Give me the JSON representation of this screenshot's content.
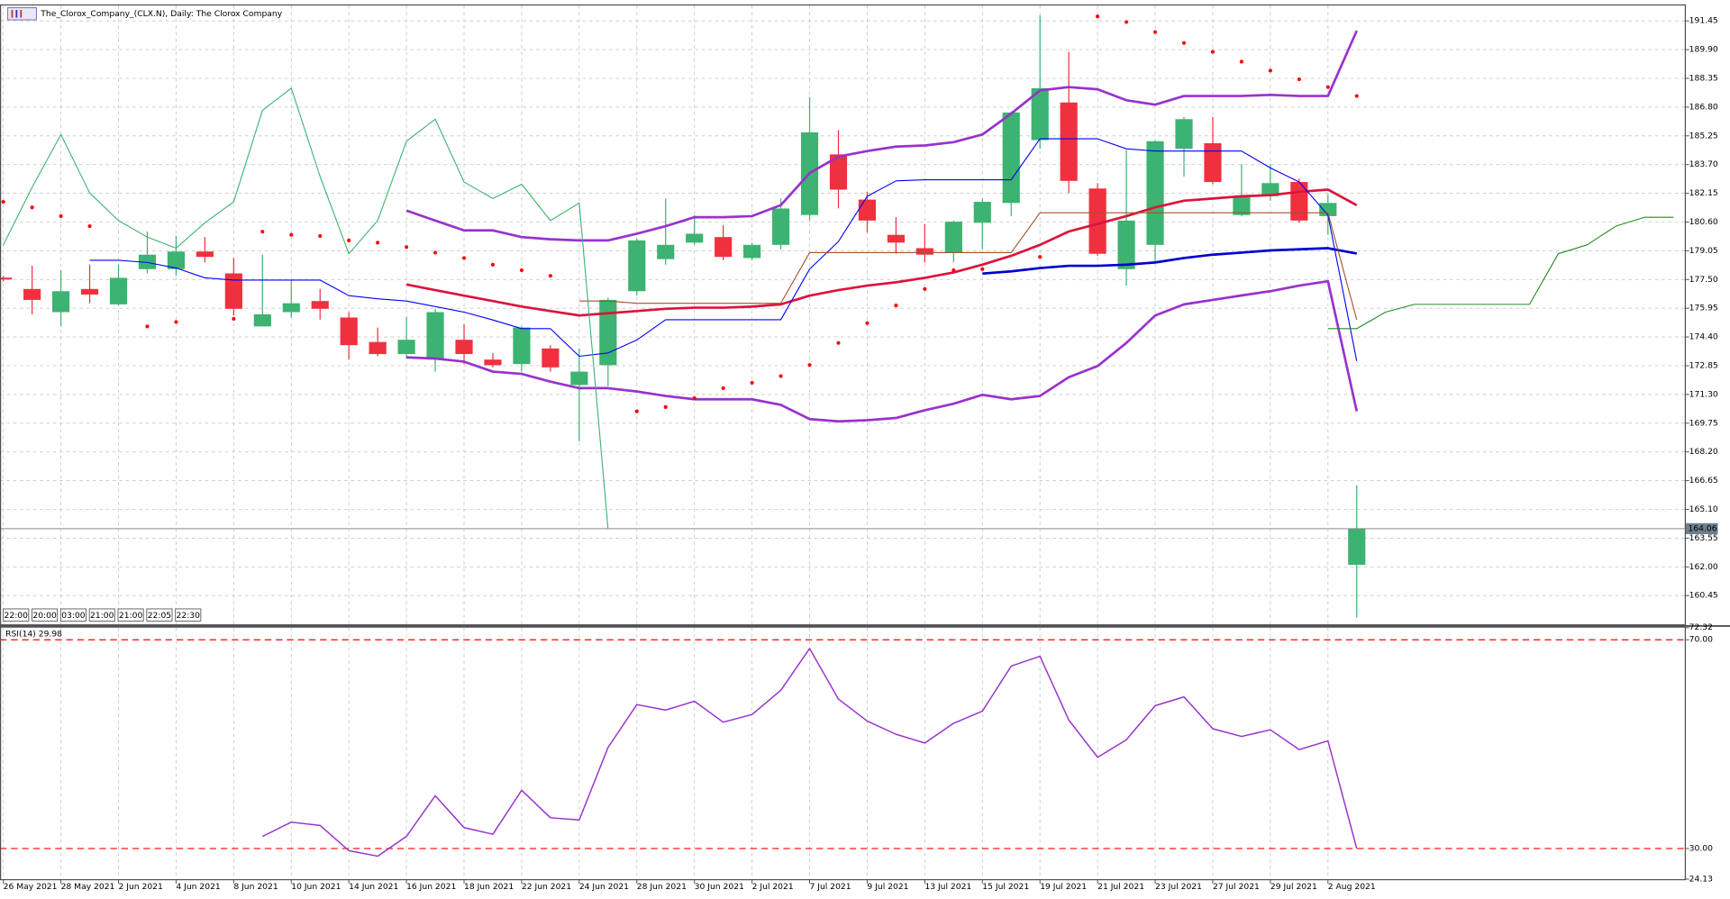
{
  "chart_data": [
    {
      "type": "candlestick",
      "title": "The_Clorox_Company_(CLX.N), Daily:  The Clorox Company",
      "categories": [
        "26 May 2021",
        null,
        "28 May 2021",
        null,
        "2 Jun 2021",
        null,
        "4 Jun 2021",
        null,
        "8 Jun 2021",
        null,
        "10 Jun 2021",
        null,
        "14 Jun 2021",
        null,
        "16 Jun 2021",
        null,
        "18 Jun 2021",
        null,
        "22 Jun 2021",
        null,
        "24 Jun 2021",
        null,
        "28 Jun 2021",
        null,
        "30 Jun 2021",
        null,
        "2 Jul 2021",
        null,
        "7 Jul 2021",
        null,
        "9 Jul 2021",
        null,
        "13 Jul 2021",
        null,
        "15 Jul 2021",
        null,
        "19 Jul 2021",
        null,
        "21 Jul 2021",
        null,
        "23 Jul 2021",
        null,
        "27 Jul 2021",
        null,
        "29 Jul 2021",
        null,
        "2 Aug 2021",
        null,
        null,
        null,
        null,
        null,
        null,
        null,
        null,
        null,
        null,
        null,
        null
      ],
      "open": [
        177.6,
        176.99,
        175.74,
        176.99,
        176.16,
        178.06,
        178.06,
        179.01,
        177.83,
        174.97,
        175.74,
        176.34,
        175.45,
        174.13,
        173.48,
        173.18,
        174.25,
        173.18,
        172.94,
        173.78,
        171.81,
        172.88,
        176.87,
        178.6,
        179.49,
        179.79,
        178.66,
        179.37,
        180.98,
        184.25,
        181.81,
        179.91,
        179.19,
        178.95,
        180.56,
        181.63,
        185.02,
        187.05,
        182.41,
        178.06,
        179.37,
        184.55,
        184.85,
        180.98,
        181.99,
        182.76,
        180.92,
        162.11,
        null,
        null,
        null,
        null,
        null,
        null,
        null,
        null,
        null,
        null,
        null
      ],
      "high": [
        177.7,
        178.24,
        178.0,
        178.3,
        178.3,
        180.09,
        179.85,
        179.79,
        178.66,
        178.84,
        177.47,
        176.99,
        175.74,
        174.91,
        175.5,
        175.92,
        175.09,
        173.54,
        174.97,
        173.96,
        173.78,
        176.52,
        179.7,
        181.87,
        180.98,
        180.44,
        179.49,
        181.87,
        187.34,
        185.56,
        182.23,
        180.86,
        180.5,
        180.68,
        181.87,
        186.57,
        191.75,
        189.78,
        182.7,
        184.49,
        185.0,
        186.27,
        186.27,
        183.72,
        183.72,
        182.94,
        182.11,
        166.4,
        null,
        null,
        null,
        null,
        null,
        null,
        null,
        null,
        null,
        null,
        null
      ],
      "low": [
        177.4,
        175.62,
        174.97,
        176.22,
        176.1,
        177.83,
        177.71,
        178.42,
        175.56,
        174.97,
        175.45,
        175.34,
        173.18,
        173.36,
        173.24,
        172.53,
        172.94,
        172.76,
        172.53,
        172.53,
        168.78,
        171.75,
        176.64,
        178.3,
        179.37,
        178.54,
        178.54,
        179.13,
        180.68,
        181.33,
        180.03,
        178.89,
        178.42,
        178.42,
        179.13,
        180.92,
        184.55,
        182.17,
        178.78,
        177.17,
        178.42,
        183.06,
        182.64,
        180.92,
        181.75,
        180.56,
        179.91,
        159.26,
        null,
        null,
        null,
        null,
        null,
        null,
        null,
        null,
        null,
        null,
        null
      ],
      "close": [
        177.5,
        176.4,
        176.87,
        176.69,
        177.59,
        178.84,
        179.01,
        178.72,
        175.92,
        175.62,
        176.22,
        175.92,
        173.96,
        173.48,
        174.25,
        175.74,
        173.48,
        172.88,
        174.91,
        172.76,
        172.53,
        176.4,
        179.61,
        179.37,
        179.97,
        178.72,
        179.37,
        181.33,
        185.44,
        182.35,
        180.68,
        179.49,
        178.84,
        180.62,
        181.69,
        186.51,
        187.82,
        182.82,
        178.89,
        180.68,
        184.96,
        186.15,
        182.76,
        181.99,
        182.7,
        180.68,
        181.63,
        164.06,
        null,
        null,
        null,
        null,
        null,
        null,
        null,
        null,
        null,
        null,
        null
      ],
      "up_color": "#3cb371",
      "down_color": "#f0303f",
      "ylim": [
        158.9,
        192.28
      ],
      "yticks": [
        191.45,
        {
          "value": 189.9,
          "label": "189.90"
        },
        188.35,
        {
          "value": 186.8,
          "label": "186.80"
        },
        185.25,
        {
          "value": 183.7,
          "label": "183.70"
        },
        182.15,
        {
          "value": 180.6,
          "label": "180.60"
        },
        179.05,
        {
          "value": 177.5,
          "label": "177.50"
        },
        175.95,
        {
          "value": 174.4,
          "label": "174.40"
        },
        172.85,
        {
          "value": 171.3,
          "label": "171.30"
        },
        169.75,
        {
          "value": 168.2,
          "label": "168.20"
        },
        166.65,
        {
          "value": 165.1,
          "label": "165.10"
        },
        163.55,
        {
          "value": 162.0,
          "label": "162.00"
        },
        160.45
      ],
      "grid": true,
      "current_price": 164.06,
      "session_labels": [
        "22:00",
        "20:00",
        "03:00",
        "21:00",
        "21:00",
        "22:05",
        "22:30"
      ],
      "series": [
        {
          "style": "thick",
          "color": "#9932cc",
          "values": [
            null,
            null,
            null,
            null,
            null,
            null,
            null,
            null,
            null,
            null,
            null,
            null,
            null,
            null,
            181.22,
            180.68,
            180.15,
            180.15,
            179.79,
            179.67,
            179.61,
            179.61,
            179.97,
            180.38,
            180.86,
            180.86,
            180.92,
            181.51,
            183.24,
            184.13,
            184.43,
            184.67,
            184.73,
            184.91,
            185.32,
            186.45,
            187.7,
            187.88,
            187.76,
            187.17,
            186.93,
            187.4,
            187.4,
            187.4,
            187.46,
            187.4,
            187.4,
            190.92,
            null,
            null,
            null,
            null,
            null,
            null,
            null,
            null,
            null,
            null,
            null
          ]
        },
        {
          "style": "thick",
          "color": "#dc143c",
          "values": [
            null,
            null,
            null,
            null,
            null,
            null,
            null,
            null,
            null,
            null,
            null,
            null,
            null,
            null,
            177.23,
            176.93,
            176.63,
            176.34,
            176.04,
            175.8,
            175.56,
            175.68,
            175.8,
            175.92,
            175.98,
            175.98,
            176.04,
            176.16,
            176.63,
            176.93,
            177.17,
            177.35,
            177.59,
            177.88,
            178.3,
            178.78,
            179.37,
            180.09,
            180.5,
            180.92,
            181.39,
            181.75,
            181.87,
            181.99,
            182.05,
            182.23,
            182.35,
            181.51,
            null,
            null,
            null,
            null,
            null,
            null,
            null,
            null,
            null,
            null,
            null
          ]
        },
        {
          "style": "thick",
          "color": "#9932cc",
          "values": [
            null,
            null,
            null,
            null,
            null,
            null,
            null,
            null,
            null,
            null,
            null,
            null,
            null,
            null,
            173.3,
            173.24,
            173.07,
            172.53,
            172.41,
            171.99,
            171.64,
            171.64,
            171.46,
            171.22,
            171.04,
            171.04,
            171.04,
            170.74,
            169.97,
            169.85,
            169.91,
            170.03,
            170.45,
            170.8,
            171.28,
            171.04,
            171.22,
            172.23,
            172.83,
            174.08,
            175.56,
            176.16,
            176.4,
            176.64,
            176.87,
            177.17,
            177.41,
            170.39,
            null,
            null,
            null,
            null,
            null,
            null,
            null,
            null,
            null,
            null,
            null
          ]
        },
        {
          "style": "thick",
          "color": "#0000cd",
          "values": [
            null,
            null,
            null,
            null,
            null,
            null,
            null,
            null,
            null,
            null,
            null,
            null,
            null,
            null,
            null,
            null,
            null,
            null,
            null,
            null,
            null,
            null,
            null,
            null,
            null,
            null,
            null,
            null,
            null,
            null,
            null,
            null,
            null,
            null,
            177.82,
            177.94,
            178.12,
            178.24,
            178.24,
            178.3,
            178.42,
            178.66,
            178.84,
            178.95,
            179.07,
            179.13,
            179.19,
            178.9,
            null,
            null,
            null,
            null,
            null,
            null,
            null,
            null,
            null,
            null,
            null
          ]
        },
        {
          "style": "thin",
          "color": "#0000ff",
          "values": [
            null,
            null,
            null,
            178.54,
            178.54,
            178.42,
            178.12,
            177.59,
            177.47,
            177.47,
            177.47,
            177.47,
            176.63,
            176.46,
            176.34,
            176.04,
            175.74,
            175.32,
            174.85,
            174.85,
            173.36,
            173.54,
            174.24,
            175.33,
            175.33,
            175.33,
            175.33,
            175.33,
            178.06,
            179.55,
            181.99,
            182.82,
            182.88,
            182.88,
            182.88,
            182.88,
            185.09,
            185.09,
            185.09,
            184.55,
            184.43,
            184.43,
            184.43,
            184.43,
            183.52,
            182.76,
            180.98,
            173.1,
            null,
            null,
            null,
            null,
            null,
            null,
            null,
            null,
            null,
            null,
            null
          ]
        },
        {
          "style": "thin",
          "color": "#a0522d",
          "values": [
            null,
            null,
            null,
            null,
            null,
            null,
            null,
            null,
            null,
            null,
            null,
            null,
            null,
            null,
            null,
            null,
            null,
            null,
            null,
            null,
            176.34,
            176.34,
            176.22,
            176.22,
            176.22,
            176.22,
            176.22,
            176.22,
            178.95,
            178.95,
            178.95,
            178.95,
            178.95,
            178.95,
            178.95,
            178.95,
            181.1,
            181.1,
            181.1,
            181.1,
            181.1,
            181.1,
            181.1,
            181.1,
            181.1,
            181.1,
            181.1,
            175.33,
            null,
            null,
            null,
            null,
            null,
            null,
            null,
            null,
            null,
            null,
            null
          ]
        },
        {
          "style": "thin",
          "color": "#3cb371",
          "values": [
            179.37,
            182.47,
            185.32,
            182.17,
            180.68,
            179.79,
            179.19,
            180.56,
            181.69,
            186.63,
            187.82,
            183.06,
            178.89,
            180.68,
            184.96,
            186.15,
            182.76,
            181.87,
            182.64,
            180.68,
            181.63,
            164.06,
            null,
            null,
            null,
            null,
            null,
            null,
            null,
            null,
            null,
            null,
            null,
            null,
            null,
            null,
            null,
            null,
            null,
            null,
            null,
            null,
            null,
            null,
            null,
            null,
            null,
            null,
            null,
            null,
            null,
            null,
            null,
            null,
            null,
            null,
            null,
            null,
            null
          ]
        },
        {
          "style": "thin",
          "color": "#228b22",
          "values": [
            null,
            null,
            null,
            null,
            null,
            null,
            null,
            null,
            null,
            null,
            null,
            null,
            null,
            null,
            null,
            null,
            null,
            null,
            null,
            null,
            null,
            null,
            null,
            null,
            null,
            null,
            null,
            null,
            null,
            null,
            null,
            null,
            null,
            null,
            null,
            null,
            null,
            null,
            null,
            null,
            null,
            null,
            null,
            null,
            null,
            null,
            174.85,
            174.85,
            175.74,
            176.16,
            176.16,
            176.16,
            176.16,
            176.16,
            178.89,
            179.37,
            180.38,
            180.86,
            180.86
          ]
        },
        {
          "style": "dots",
          "color": "#ff0000",
          "values": [
            181.69,
            181.39,
            180.92,
            180.38,
            null,
            174.97,
            175.21,
            null,
            175.38,
            180.08,
            179.91,
            179.85,
            179.61,
            179.49,
            179.25,
            178.95,
            178.66,
            178.3,
            178.0,
            177.7,
            null,
            null,
            170.39,
            170.62,
            171.1,
            171.64,
            171.93,
            172.29,
            172.89,
            174.08,
            175.15,
            176.1,
            176.99,
            178.0,
            178.06,
            null,
            178.72,
            null,
            191.69,
            191.39,
            190.85,
            190.26,
            189.78,
            189.25,
            188.77,
            188.3,
            187.88,
            187.4,
            null,
            null,
            null,
            null,
            null,
            null,
            null,
            null,
            null,
            null,
            null
          ]
        }
      ]
    },
    {
      "type": "line",
      "label": "RSI(14) 29.98",
      "color": "#9932cc",
      "values": [
        null,
        null,
        null,
        null,
        null,
        null,
        null,
        null,
        null,
        32.32,
        35.05,
        34.42,
        29.58,
        28.53,
        32.32,
        40.11,
        34.0,
        32.74,
        41.16,
        35.89,
        35.47,
        49.37,
        57.58,
        56.53,
        58.21,
        54.21,
        55.68,
        60.32,
        68.32,
        58.63,
        54.42,
        51.89,
        50.21,
        54.0,
        56.32,
        64.95,
        66.84,
        54.63,
        47.47,
        50.84,
        57.37,
        59.05,
        52.95,
        51.47,
        52.74,
        48.95,
        50.63,
        29.98
      ],
      "ylim": [
        24.13,
        72.32
      ],
      "yticks": [
        72.32,
        {
          "value": 70,
          "label": "70.00"
        },
        {
          "value": 30,
          "label": "30.00"
        },
        24.13
      ],
      "levels": [
        70,
        30
      ],
      "level_color": "#ff0000",
      "grid": false
    }
  ]
}
